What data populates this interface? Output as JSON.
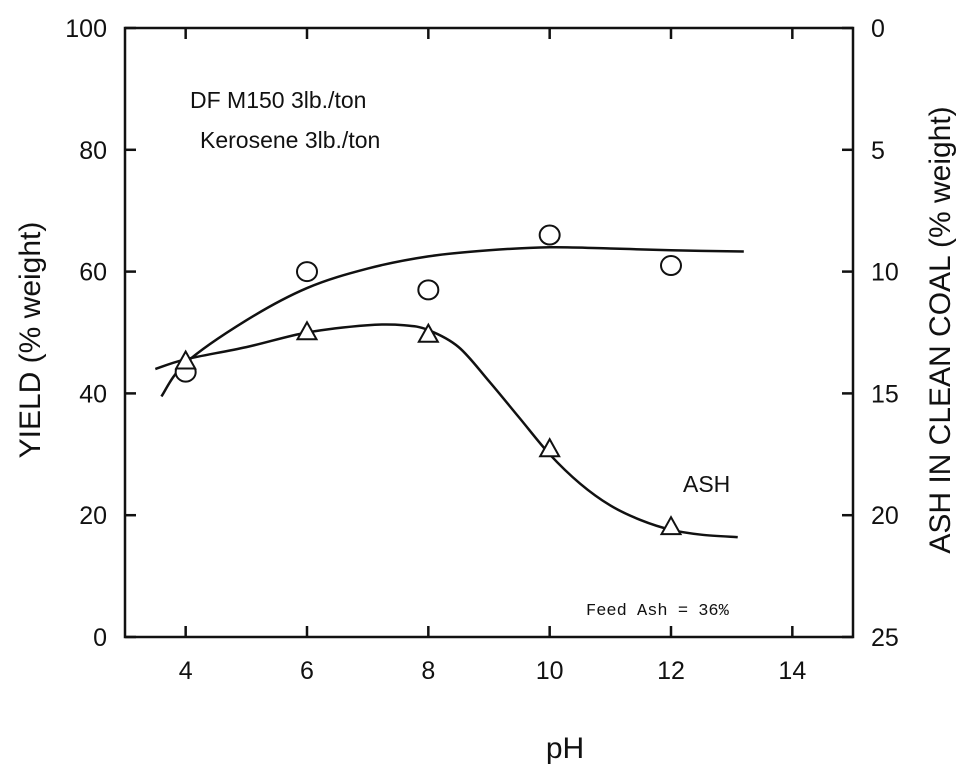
{
  "chart_data": {
    "type": "scatter",
    "xlabel": "pH",
    "ylabel_left": "YIELD (% weight)",
    "ylabel_right": "ASH IN CLEAN COAL (% weight)",
    "xlim": [
      3,
      15
    ],
    "ylim_left": [
      0,
      100
    ],
    "ylim_right": [
      0,
      25
    ],
    "right_axis_inverted": true,
    "x_ticks": [
      4,
      6,
      8,
      10,
      12,
      14
    ],
    "y_ticks_left": [
      0,
      20,
      40,
      60,
      80,
      100
    ],
    "y_ticks_right": [
      0,
      5,
      10,
      15,
      20,
      25
    ],
    "x_tick_labels": [
      "4",
      "6",
      "8",
      "10",
      "12",
      "14"
    ],
    "y_tick_labels_left": [
      "0",
      "20",
      "40",
      "60",
      "80",
      "100"
    ],
    "y_tick_labels_right": [
      "0",
      "5",
      "10",
      "15",
      "20",
      "25"
    ],
    "annotations": {
      "reagent_1": "DF M150 3lb./ton",
      "reagent_2": "Kerosene 3lb./ton",
      "curve_label": "ASH",
      "feed_note": "Feed Ash = 36%"
    },
    "series": [
      {
        "marker": "circle",
        "axis": "left",
        "points": [
          [
            4,
            43.5
          ],
          [
            6,
            60
          ],
          [
            8,
            57
          ],
          [
            10,
            66
          ],
          [
            12,
            61
          ]
        ],
        "fit": [
          [
            3.6,
            39.5
          ],
          [
            4,
            45
          ],
          [
            5,
            52
          ],
          [
            6,
            57.3
          ],
          [
            7,
            60.5
          ],
          [
            8,
            62.5
          ],
          [
            9,
            63.5
          ],
          [
            10,
            64
          ],
          [
            11,
            63.8
          ],
          [
            12,
            63.5
          ],
          [
            13.2,
            63.3
          ]
        ]
      },
      {
        "marker": "triangle",
        "axis": "right",
        "points": [
          [
            4,
            13.7
          ],
          [
            6,
            12.5
          ],
          [
            8,
            12.6
          ],
          [
            10,
            17.3
          ],
          [
            12,
            20.5
          ]
        ],
        "fit": [
          [
            3.5,
            14
          ],
          [
            4,
            13.6
          ],
          [
            5,
            13.1
          ],
          [
            6,
            12.5
          ],
          [
            7,
            12.2
          ],
          [
            7.6,
            12.2
          ],
          [
            8,
            12.4
          ],
          [
            8.5,
            13.1
          ],
          [
            9,
            14.5
          ],
          [
            9.5,
            16.0
          ],
          [
            10,
            17.5
          ],
          [
            10.5,
            18.7
          ],
          [
            11,
            19.6
          ],
          [
            11.5,
            20.2
          ],
          [
            12,
            20.6
          ],
          [
            12.5,
            20.8
          ],
          [
            13.1,
            20.9
          ]
        ]
      }
    ]
  }
}
